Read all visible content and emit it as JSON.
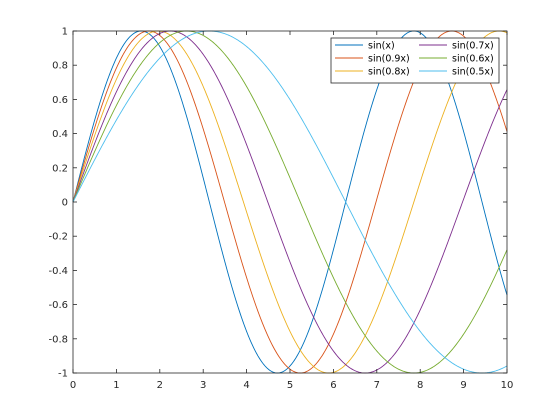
{
  "chart_data": {
    "type": "line",
    "title": "",
    "xlabel": "",
    "ylabel": "",
    "xlim": [
      0,
      10
    ],
    "ylim": [
      -1,
      1
    ],
    "xticks": [
      0,
      1,
      2,
      3,
      4,
      5,
      6,
      7,
      8,
      9,
      10
    ],
    "yticks": [
      -1,
      -0.8,
      -0.6,
      -0.4,
      -0.2,
      0,
      0.2,
      0.4,
      0.6,
      0.8,
      1
    ],
    "xtick_labels": [
      "0",
      "1",
      "2",
      "3",
      "4",
      "5",
      "6",
      "7",
      "8",
      "9",
      "10"
    ],
    "ytick_labels": [
      "-1",
      "-0.8",
      "-0.6",
      "-0.4",
      "-0.2",
      "0",
      "0.2",
      "0.4",
      "0.6",
      "0.8",
      "1"
    ],
    "grid": false,
    "legend_position": "top-right",
    "legend_columns": 2,
    "series": [
      {
        "name": "sin(x)",
        "frequency": 1.0,
        "color": "#0072BD"
      },
      {
        "name": "sin(0.9x)",
        "frequency": 0.9,
        "color": "#D95319"
      },
      {
        "name": "sin(0.8x)",
        "frequency": 0.8,
        "color": "#EDB120"
      },
      {
        "name": "sin(0.7x)",
        "frequency": 0.7,
        "color": "#7E2F8E"
      },
      {
        "name": "sin(0.6x)",
        "frequency": 0.6,
        "color": "#77AC30"
      },
      {
        "name": "sin(0.5x)",
        "frequency": 0.5,
        "color": "#4DBEEE"
      }
    ]
  }
}
